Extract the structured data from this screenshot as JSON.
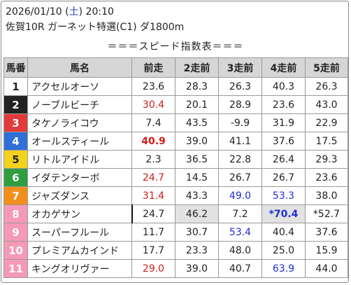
{
  "header": {
    "date": "2026/01/10",
    "dow_open": "(",
    "dow": "土",
    "dow_close": ")",
    "time": "20:10",
    "race": "佐賀10R ガーネット特選(C1) ダ1800m"
  },
  "subtitle": "＝＝＝スピード指数表＝＝＝",
  "columns": [
    "馬番",
    "馬名",
    "前走",
    "2走前",
    "3走前",
    "4走前",
    "5走前"
  ],
  "colors": {
    "gate": [
      "#ffffff",
      "#222222",
      "#e23a3a",
      "#2f6fd6",
      "#f2d21d",
      "#2e9e3f",
      "#f28e1c",
      "#f59ab6"
    ],
    "red": "#d11b1b",
    "blue": "#2030d0"
  },
  "rows": [
    {
      "num": "1",
      "name": "アクセルオーソ",
      "vals": [
        "23.6",
        "28.3",
        "26.3",
        "40.3",
        "26.3"
      ],
      "styles": [
        "",
        "",
        "",
        "",
        ""
      ]
    },
    {
      "num": "2",
      "name": "ノーブルビーチ",
      "vals": [
        "30.4",
        "20.1",
        "28.9",
        "23.6",
        "43.0"
      ],
      "styles": [
        "red",
        "",
        "",
        "",
        ""
      ]
    },
    {
      "num": "3",
      "name": "タケノライコウ",
      "vals": [
        "7.4",
        "43.5",
        "-9.9",
        "31.9",
        "22.9"
      ],
      "styles": [
        "",
        "",
        "",
        "",
        ""
      ]
    },
    {
      "num": "4",
      "name": "オールスティール",
      "vals": [
        "40.9",
        "39.0",
        "41.1",
        "37.6",
        "17.5"
      ],
      "styles": [
        "red b",
        "",
        "",
        "",
        ""
      ]
    },
    {
      "num": "5",
      "name": "リトルアイドル",
      "vals": [
        "2.3",
        "36.5",
        "22.8",
        "26.4",
        "29.3"
      ],
      "styles": [
        "",
        "",
        "",
        "",
        ""
      ]
    },
    {
      "num": "6",
      "name": "イダテンターボ",
      "vals": [
        "24.7",
        "14.5",
        "26.7",
        "26.7",
        "23.6"
      ],
      "styles": [
        "red",
        "",
        "",
        "",
        ""
      ]
    },
    {
      "num": "7",
      "name": "ジャズダンス",
      "vals": [
        "31.4",
        "43.3",
        "49.0",
        "53.3",
        "38.0"
      ],
      "styles": [
        "red",
        "",
        "blue",
        "blue",
        ""
      ]
    },
    {
      "num": "8",
      "name": "オカゲサン",
      "vals": [
        "24.7",
        "46.2",
        "7.2",
        "*70.4",
        "*52.7"
      ],
      "styles": [
        "first",
        "hl",
        "",
        "blue b hl",
        ""
      ]
    },
    {
      "num": "9",
      "name": "スーパーフルール",
      "vals": [
        "11.7",
        "30.7",
        "53.4",
        "40.4",
        "37.6"
      ],
      "styles": [
        "",
        "",
        "blue",
        "",
        ""
      ]
    },
    {
      "num": "10",
      "name": "プレミアムカインド",
      "vals": [
        "17.7",
        "23.3",
        "48.0",
        "25.0",
        "15.9"
      ],
      "styles": [
        "",
        "",
        "",
        "",
        ""
      ]
    },
    {
      "num": "11",
      "name": "キングオリヴァー",
      "vals": [
        "29.0",
        "39.0",
        "40.7",
        "63.9",
        "44.0"
      ],
      "styles": [
        "red",
        "",
        "",
        "blue",
        ""
      ]
    }
  ]
}
